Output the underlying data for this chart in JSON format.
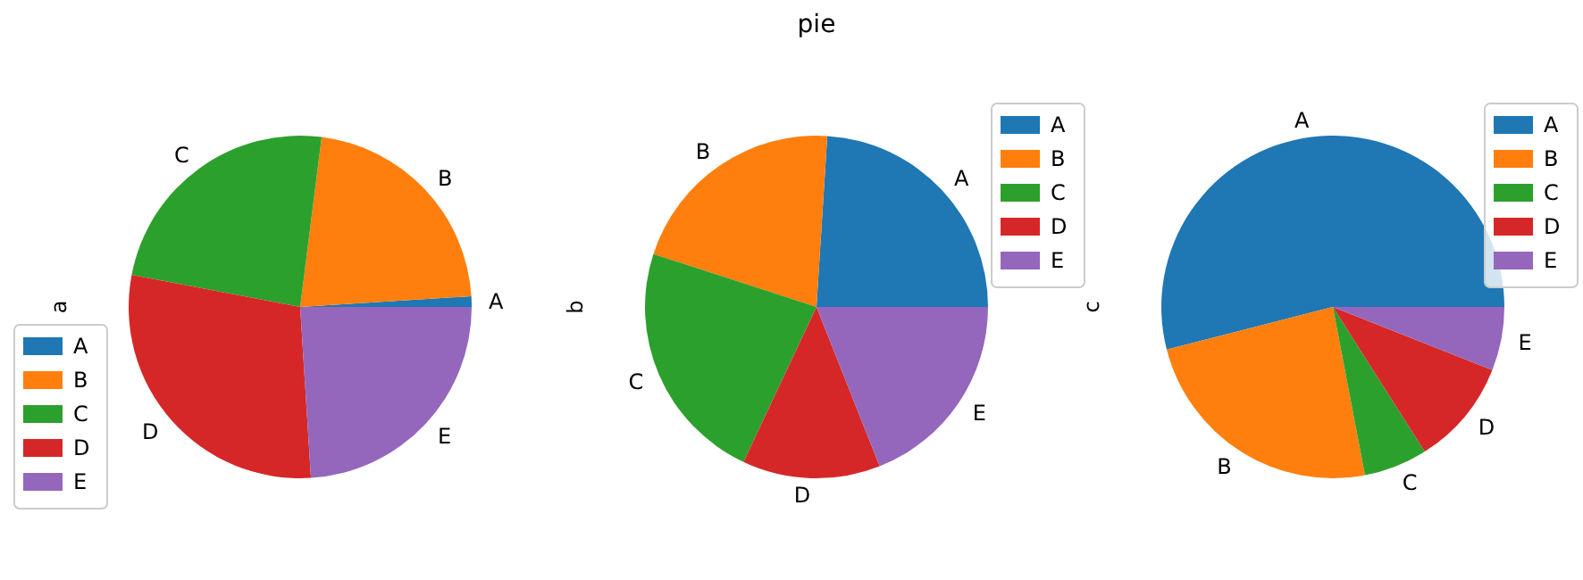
{
  "chart_data": [
    {
      "type": "pie",
      "ylabel": "a",
      "categories": [
        "A",
        "B",
        "C",
        "D",
        "E"
      ],
      "values": [
        1,
        22,
        24,
        29,
        24
      ],
      "colors": [
        "#1f77b4",
        "#ff7f0e",
        "#2ca02c",
        "#d62728",
        "#9467bd"
      ],
      "legend": "bottom left"
    },
    {
      "type": "pie",
      "title": "pie",
      "ylabel": "b",
      "categories": [
        "A",
        "B",
        "C",
        "D",
        "E"
      ],
      "values": [
        24,
        21,
        23,
        13,
        19
      ],
      "colors": [
        "#1f77b4",
        "#ff7f0e",
        "#2ca02c",
        "#d62728",
        "#9467bd"
      ],
      "legend": "top right"
    },
    {
      "type": "pie",
      "ylabel": "c",
      "categories": [
        "A",
        "B",
        "C",
        "D",
        "E"
      ],
      "values": [
        54,
        24,
        6,
        10,
        6
      ],
      "colors": [
        "#1f77b4",
        "#ff7f0e",
        "#2ca02c",
        "#d62728",
        "#9467bd"
      ],
      "legend": "top right"
    }
  ]
}
